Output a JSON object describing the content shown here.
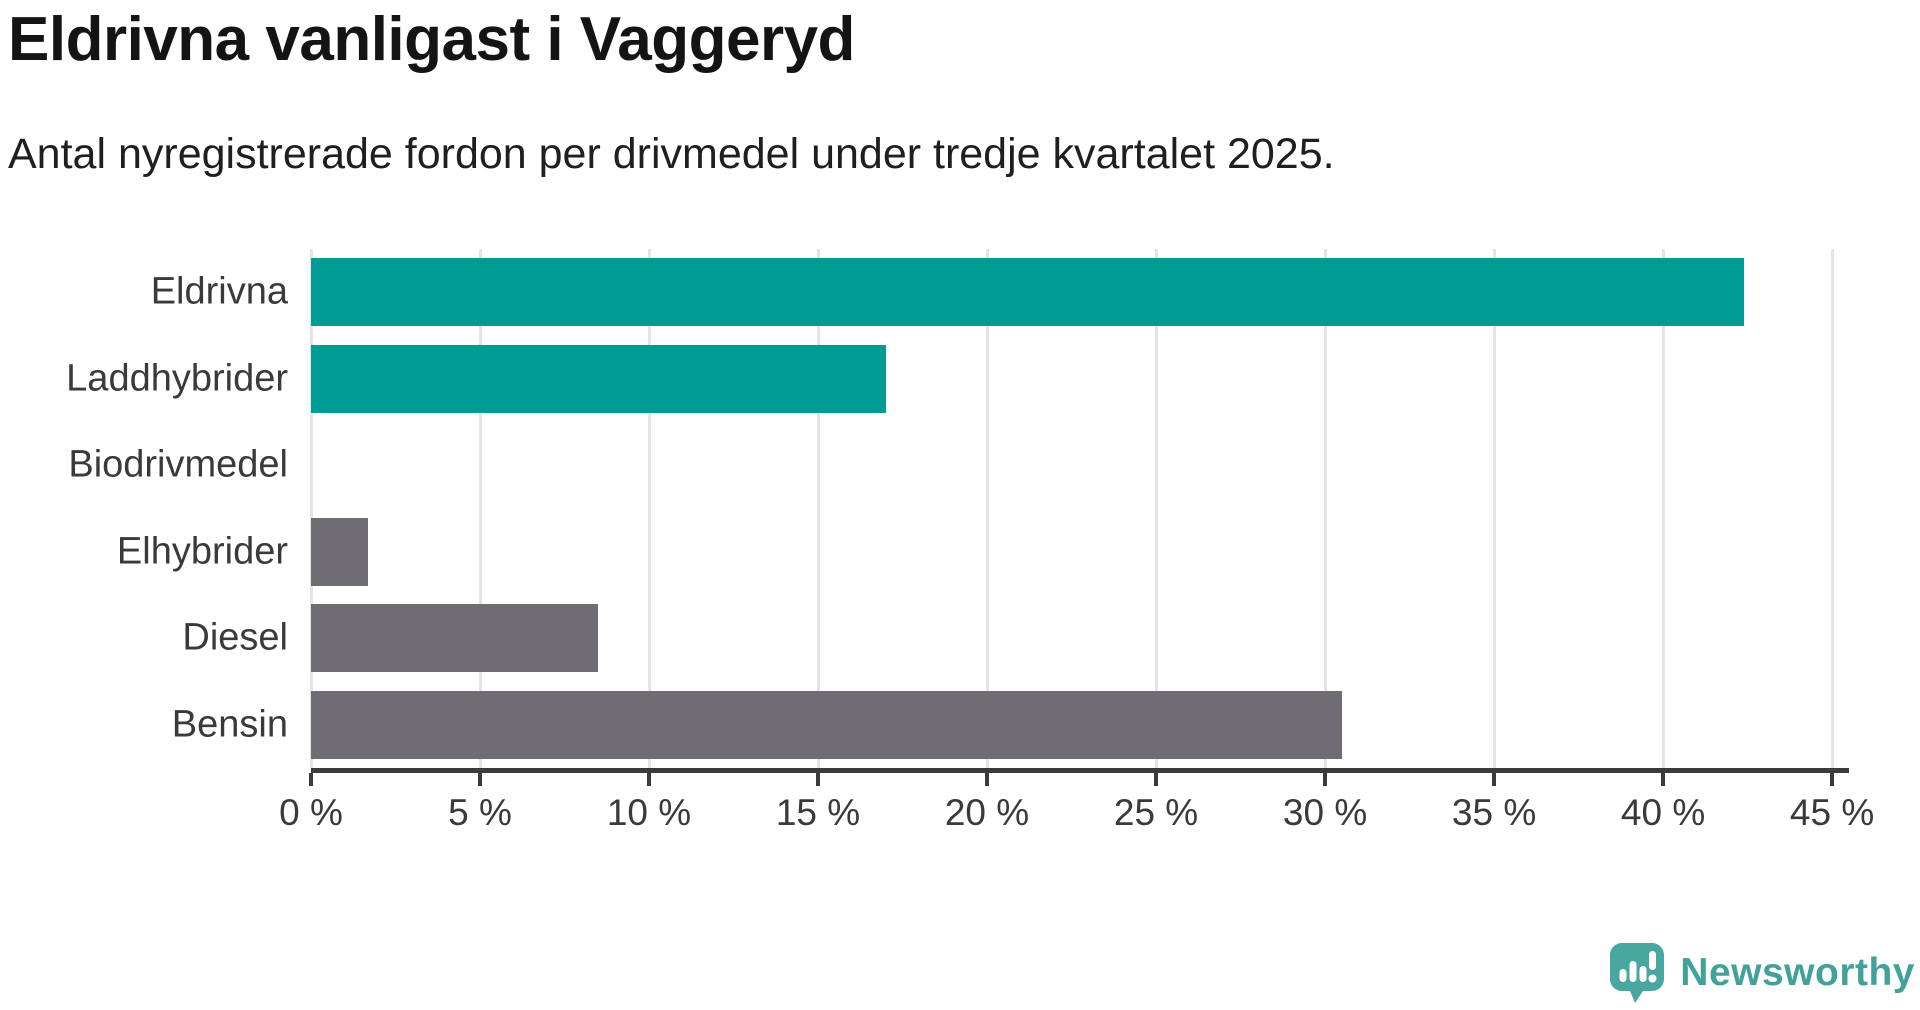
{
  "chart_data": {
    "type": "bar",
    "orientation": "horizontal",
    "title": "Eldrivna vanligast i Vaggeryd",
    "subtitle": "Antal nyregistrerade fordon per drivmedel under tredje kvartalet 2025.",
    "categories": [
      "Eldrivna",
      "Laddhybrider",
      "Biodrivmedel",
      "Elhybrider",
      "Diesel",
      "Bensin"
    ],
    "values": [
      42.4,
      17.0,
      0,
      1.7,
      8.5,
      30.5
    ],
    "unit": "%",
    "bar_colors": [
      "#009c93",
      "#009c93",
      "#009c93",
      "#6f6c73",
      "#6f6c73",
      "#6f6c73"
    ],
    "accent_color": "#009c93",
    "neutral_color": "#6f6c73",
    "xlabel": "",
    "ylabel": "",
    "xlim": [
      0,
      45.5
    ],
    "x_ticks": [
      0,
      5,
      10,
      15,
      20,
      25,
      30,
      35,
      40,
      45
    ],
    "x_tick_labels": [
      "0 %",
      "5 %",
      "10 %",
      "15 %",
      "20 %",
      "25 %",
      "30 %",
      "35 %",
      "40 %",
      "45 %"
    ],
    "grid": "vertical-only",
    "gridline_color": "#e4e4e4",
    "axis_color": "#3b3b3b",
    "legend": "none"
  },
  "footer": {
    "brand": "Newsworthy",
    "brand_color": "#42a29a",
    "logo_icon": "speech-bubble-bar-chart-icon"
  }
}
